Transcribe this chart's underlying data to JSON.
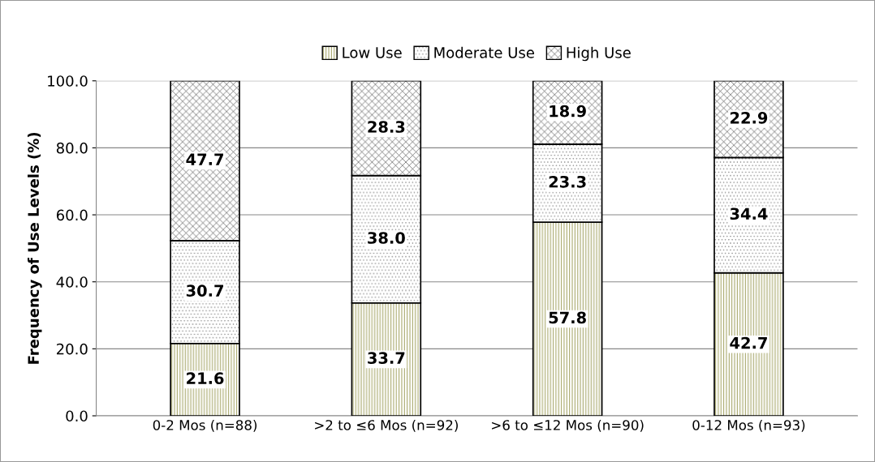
{
  "chart_data": {
    "type": "bar",
    "ylabel": "Frequency of Use Levels (%)",
    "categories": [
      "0-2 Mos (n=88)",
      ">2 to ≤6 Mos (n=92)",
      ">6 to ≤12 Mos (n=90)",
      "0-12 Mos (n=93)"
    ],
    "stacked": true,
    "series": [
      {
        "name": "Low Use",
        "values": [
          21.6,
          33.7,
          57.8,
          42.7
        ],
        "value_labels": [
          "21.6",
          "33.7",
          "57.8",
          "42.7"
        ]
      },
      {
        "name": "Moderate Use",
        "values": [
          30.7,
          38.0,
          23.3,
          34.4
        ],
        "value_labels": [
          "30.7",
          "38.0",
          "23.3",
          "34.4"
        ]
      },
      {
        "name": "High Use",
        "values": [
          47.7,
          28.3,
          18.9,
          22.9
        ],
        "value_labels": [
          "47.7",
          "28.3",
          "18.9",
          "22.9"
        ]
      }
    ],
    "ylim": [
      0,
      100
    ],
    "yticks": [
      {
        "value": 0,
        "label": "0.0"
      },
      {
        "value": 20,
        "label": "20.0"
      },
      {
        "value": 40,
        "label": "40.0"
      },
      {
        "value": 60,
        "label": "60.0"
      },
      {
        "value": 80,
        "label": "80.0"
      },
      {
        "value": 100,
        "label": "100.0"
      }
    ],
    "grid": "y",
    "legend": "top"
  }
}
